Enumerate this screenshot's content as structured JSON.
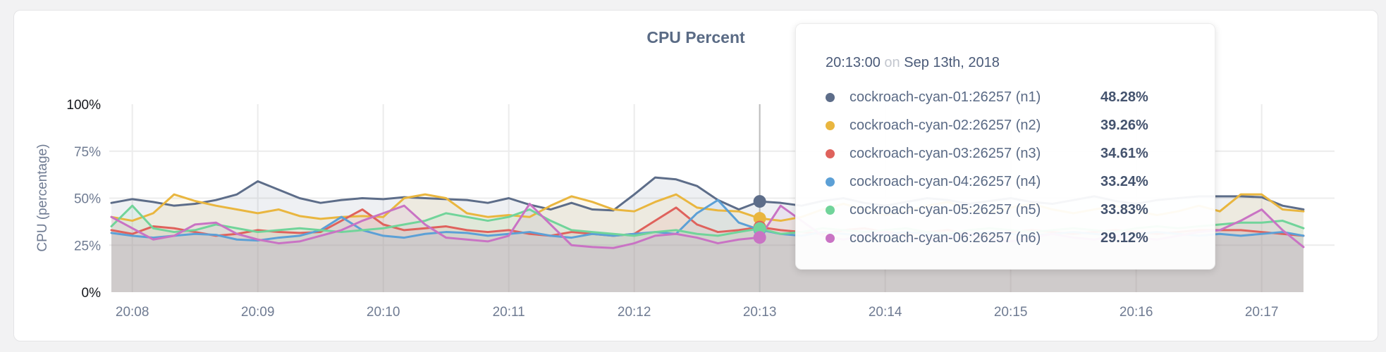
{
  "page": {
    "background": "#f2f2f3",
    "card_background": "#ffffff"
  },
  "chart_data": {
    "type": "area",
    "title": "CPU Percent",
    "ylabel": "CPU (percentage)",
    "ylim": [
      0,
      100
    ],
    "grid": true,
    "legend_position": "tooltip",
    "y_ticks": [
      {
        "value": 100,
        "label": "100%"
      },
      {
        "value": 75,
        "label": "75%"
      },
      {
        "value": 50,
        "label": "50%"
      },
      {
        "value": 25,
        "label": "25%"
      },
      {
        "value": 0,
        "label": "0%"
      }
    ],
    "x_ticks": [
      "20:08",
      "20:09",
      "20:10",
      "20:11",
      "20:12",
      "20:13",
      "20:14",
      "20:15",
      "20:16",
      "20:17"
    ],
    "x_start": "20:07:50",
    "x_step_seconds": 10,
    "hover": {
      "index": 31,
      "time": "20:13:00"
    },
    "series": [
      {
        "name": "cockroach-cyan-01:26257 (n1)",
        "color": "#5d6d89",
        "values": [
          47.5,
          49.5,
          48,
          46,
          47,
          49,
          52,
          59,
          54.5,
          50,
          47.5,
          49,
          50,
          49.5,
          50.5,
          50,
          49.5,
          49,
          47.5,
          50,
          46.5,
          44,
          47.5,
          44,
          43.5,
          52,
          61,
          60,
          56.5,
          49,
          44,
          48.28,
          47.5,
          46,
          48.5,
          50,
          47.5,
          46,
          48,
          50,
          49,
          47,
          48.5,
          50,
          48,
          47,
          49,
          51,
          48.5,
          47,
          49,
          50,
          51,
          51,
          51,
          50.5,
          46,
          44
        ]
      },
      {
        "name": "cockroach-cyan-02:26257 (n2)",
        "color": "#e9b63f",
        "values": [
          40,
          38,
          42,
          52,
          48.5,
          46,
          44,
          42,
          44,
          40.5,
          39,
          40,
          40.5,
          40,
          50,
          52,
          50,
          42,
          40,
          41,
          40,
          46,
          51,
          48,
          44,
          43,
          48,
          52,
          45,
          43.5,
          43,
          39.26,
          38,
          40,
          44,
          47,
          44,
          41,
          43,
          46,
          48,
          44,
          42,
          45,
          47,
          44,
          42,
          44,
          46,
          43,
          41,
          43,
          46,
          43,
          52,
          52,
          44,
          43
        ]
      },
      {
        "name": "cockroach-cyan-03:26257 (n3)",
        "color": "#df625c",
        "values": [
          33,
          31,
          35,
          34,
          32,
          30,
          31,
          33,
          32,
          31.5,
          32,
          38,
          44,
          36,
          33,
          34,
          35,
          33,
          32,
          33,
          31,
          30,
          32,
          31,
          30,
          31,
          38,
          45,
          36,
          32,
          33,
          34.61,
          33,
          32,
          31,
          33,
          34,
          32,
          31,
          32,
          33,
          31,
          30,
          32,
          33,
          32,
          31,
          32,
          33,
          32,
          31,
          32,
          33,
          33,
          33,
          32,
          31,
          30
        ]
      },
      {
        "name": "cockroach-cyan-04:26257 (n4)",
        "color": "#5ca0d6",
        "values": [
          31.5,
          30,
          29,
          30,
          31,
          30.5,
          28,
          27.5,
          29,
          30,
          33,
          40,
          33,
          30,
          29,
          31,
          32,
          31.5,
          30,
          31,
          32,
          30,
          29,
          31,
          30,
          31,
          32,
          31,
          42,
          49,
          37,
          33.24,
          31,
          30,
          32,
          31,
          30,
          31,
          32,
          31,
          30,
          31,
          32,
          31,
          30,
          31,
          32,
          31,
          30,
          31,
          32,
          31,
          30,
          31,
          30,
          31,
          32,
          30
        ]
      },
      {
        "name": "cockroach-cyan-05:26257 (n5)",
        "color": "#71d49a",
        "values": [
          35,
          46,
          34,
          32,
          33,
          36,
          34,
          32,
          33,
          34,
          33,
          32,
          33,
          34,
          36,
          38,
          42,
          40,
          38,
          40,
          44,
          38,
          33,
          32,
          31,
          30,
          32,
          33,
          31,
          30,
          32,
          33.83,
          31,
          32,
          34,
          33,
          32,
          33,
          34,
          32,
          31,
          33,
          34,
          33,
          32,
          33,
          34,
          33,
          32,
          34,
          35,
          34,
          35,
          36,
          37,
          37,
          38,
          34
        ]
      },
      {
        "name": "cockroach-cyan-06:26257 (n6)",
        "color": "#c973c4",
        "values": [
          40,
          34,
          28,
          30,
          36,
          37,
          31,
          28,
          26,
          27,
          30,
          33,
          38,
          42,
          46,
          36,
          29,
          28,
          27,
          30,
          47,
          36,
          25,
          24,
          23.5,
          26,
          30,
          31,
          29,
          26,
          28,
          29.12,
          46,
          38,
          30,
          28,
          30,
          32,
          29,
          27,
          29,
          31,
          28,
          27,
          29,
          31,
          29,
          28,
          30,
          29,
          28,
          30,
          32,
          33,
          38,
          44,
          33,
          24
        ]
      }
    ]
  },
  "tooltip": {
    "time": "20:13:00",
    "connector": "on",
    "date": "Sep 13th, 2018",
    "rows": [
      {
        "label": "cockroach-cyan-01:26257 (n1)",
        "value": "48.28%",
        "color": "#5d6d89"
      },
      {
        "label": "cockroach-cyan-02:26257 (n2)",
        "value": "39.26%",
        "color": "#e9b63f"
      },
      {
        "label": "cockroach-cyan-03:26257 (n3)",
        "value": "34.61%",
        "color": "#df625c"
      },
      {
        "label": "cockroach-cyan-04:26257 (n4)",
        "value": "33.24%",
        "color": "#5ca0d6"
      },
      {
        "label": "cockroach-cyan-05:26257 (n5)",
        "value": "33.83%",
        "color": "#71d49a"
      },
      {
        "label": "cockroach-cyan-06:26257 (n6)",
        "value": "29.12%",
        "color": "#c973c4"
      }
    ]
  }
}
